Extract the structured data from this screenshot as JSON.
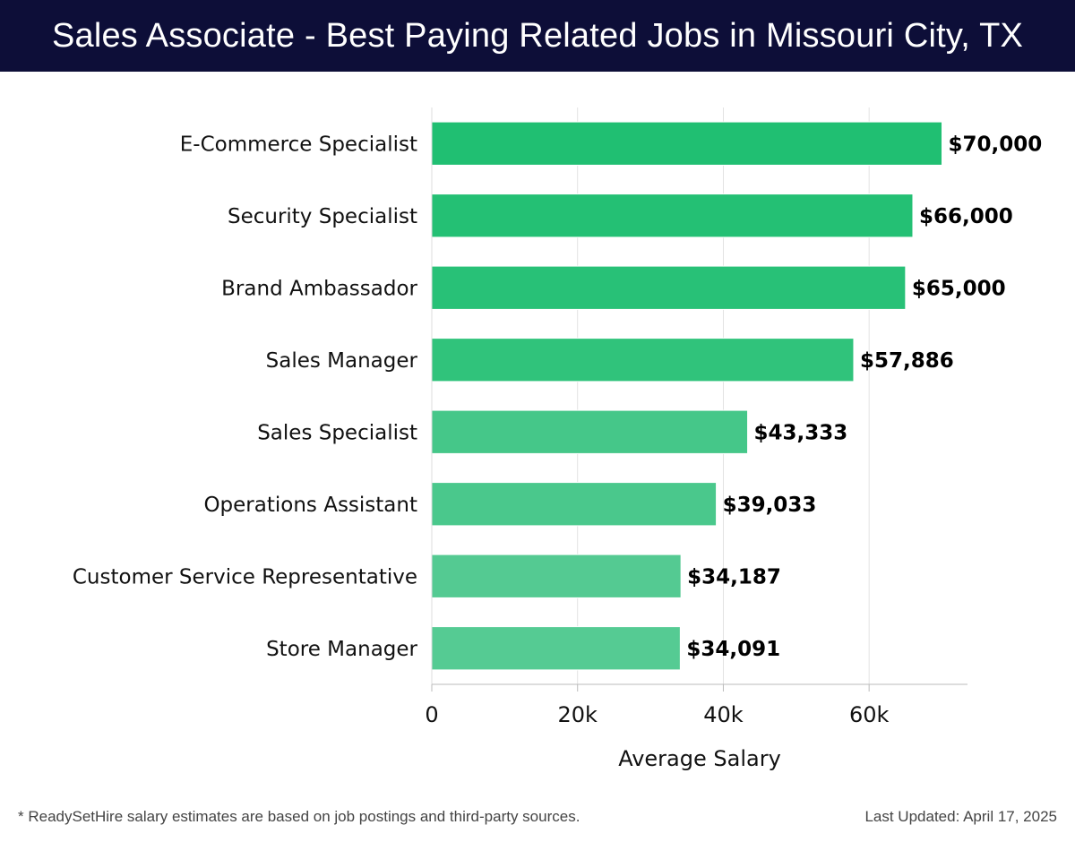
{
  "title": "Sales Associate - Best Paying Related Jobs in Missouri City, TX",
  "chart_data": {
    "type": "bar",
    "orientation": "horizontal",
    "categories": [
      "E-Commerce Specialist",
      "Security Specialist",
      "Brand Ambassador",
      "Sales Manager",
      "Sales Specialist",
      "Operations Assistant",
      "Customer Service Representative",
      "Store Manager"
    ],
    "values": [
      70000,
      66000,
      65000,
      57886,
      43333,
      39033,
      34187,
      34091
    ],
    "value_labels": [
      "$70,000",
      "$66,000",
      "$65,000",
      "$57,886",
      "$43,333",
      "$39,033",
      "$34,187",
      "$34,091"
    ],
    "xlabel": "Average Salary",
    "ylabel": "",
    "xlim": [
      0,
      73500
    ],
    "xticks": [
      0,
      20000,
      40000,
      60000
    ],
    "xtick_labels": [
      "0",
      "20k",
      "40k",
      "60k"
    ],
    "grid": true,
    "colors": [
      "#20bf72",
      "#24c074",
      "#28c177",
      "#30c37b",
      "#45c789",
      "#4ac88c",
      "#54ca92",
      "#55cb93"
    ]
  },
  "footer": {
    "note": "* ReadySetHire salary estimates are based on job postings and third-party sources.",
    "updated": "Last Updated: April 17, 2025"
  }
}
